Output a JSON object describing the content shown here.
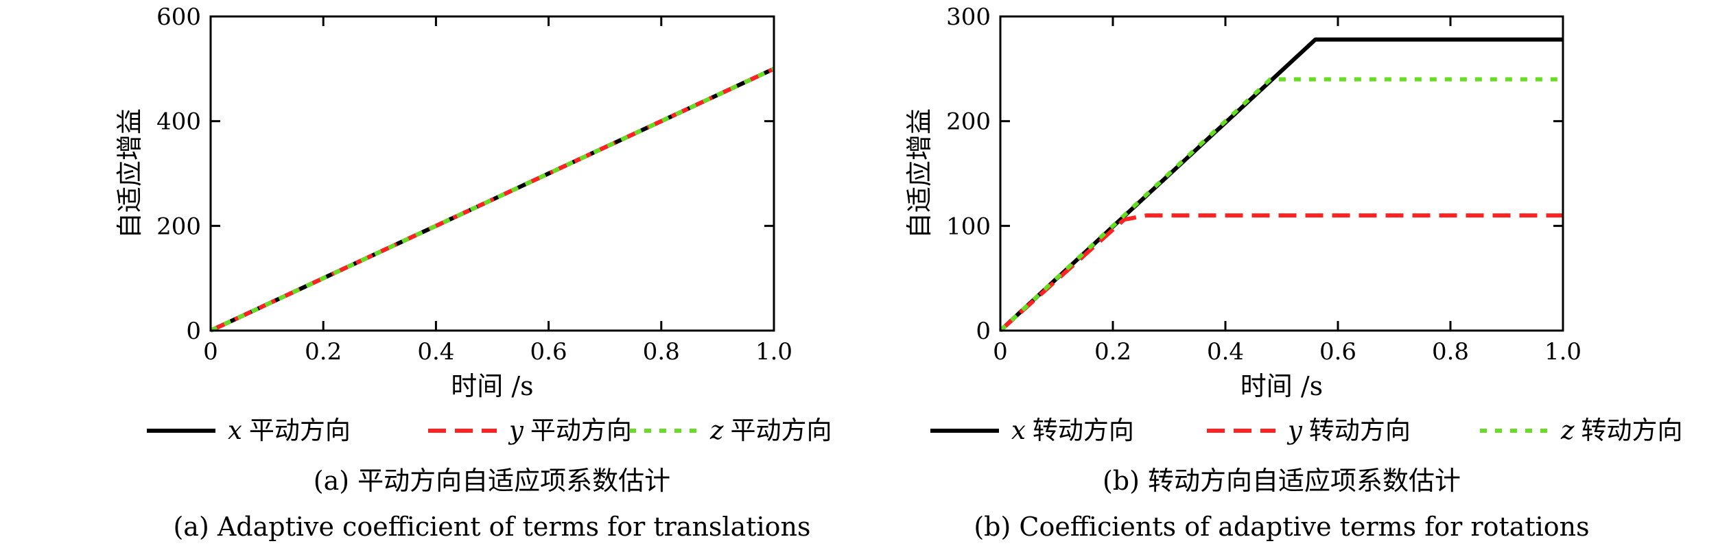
{
  "chart_data": [
    {
      "type": "line",
      "caption_cn": "(a) 平动方向自适应项系数估计",
      "caption_en": "(a) Adaptive coefficient of terms for translations",
      "xlabel": "时间 /s",
      "ylabel": "自适应增益",
      "xlim": [
        0,
        1.0
      ],
      "ylim": [
        0,
        600
      ],
      "xticks": [
        "0",
        "0.2",
        "0.4",
        "0.6",
        "0.8",
        "1.0"
      ],
      "yticks": [
        "0",
        "200",
        "400",
        "600"
      ],
      "series": [
        {
          "name": "x 平动方向",
          "var": "x",
          "label": "平动方向",
          "color": "#000000",
          "style": "solid",
          "x": [
            0,
            1.0
          ],
          "y": [
            0,
            500
          ]
        },
        {
          "name": "y 平动方向",
          "var": "y",
          "label": "平动方向",
          "color": "#ff2222",
          "style": "dashed",
          "x": [
            0,
            1.0
          ],
          "y": [
            0,
            500
          ]
        },
        {
          "name": "z 平动方向",
          "var": "z",
          "label": "平动方向",
          "color": "#66dd22",
          "style": "dotted",
          "x": [
            0,
            1.0
          ],
          "y": [
            0,
            500
          ]
        }
      ]
    },
    {
      "type": "line",
      "caption_cn": "(b) 转动方向自适应项系数估计",
      "caption_en": "(b) Coefficients of adaptive terms for rotations",
      "xlabel": "时间 /s",
      "ylabel": "自适应增益",
      "xlim": [
        0,
        1.0
      ],
      "ylim": [
        0,
        300
      ],
      "xticks": [
        "0",
        "0.2",
        "0.4",
        "0.6",
        "0.8",
        "1.0"
      ],
      "yticks": [
        "0",
        "100",
        "200",
        "300"
      ],
      "series": [
        {
          "name": "x 转动方向",
          "var": "x",
          "label": "转动方向",
          "color": "#000000",
          "style": "solid",
          "x": [
            0,
            0.56,
            1.0
          ],
          "y": [
            0,
            278,
            278
          ]
        },
        {
          "name": "y 转动方向",
          "var": "y",
          "label": "转动方向",
          "color": "#ff2222",
          "style": "dashed",
          "x": [
            0,
            0.22,
            0.26,
            1.0
          ],
          "y": [
            0,
            106,
            110,
            110
          ]
        },
        {
          "name": "z 转动方向",
          "var": "z",
          "label": "转动方向",
          "color": "#66dd22",
          "style": "dotted",
          "x": [
            0,
            0.48,
            1.0
          ],
          "y": [
            0,
            240,
            240
          ]
        }
      ]
    }
  ]
}
